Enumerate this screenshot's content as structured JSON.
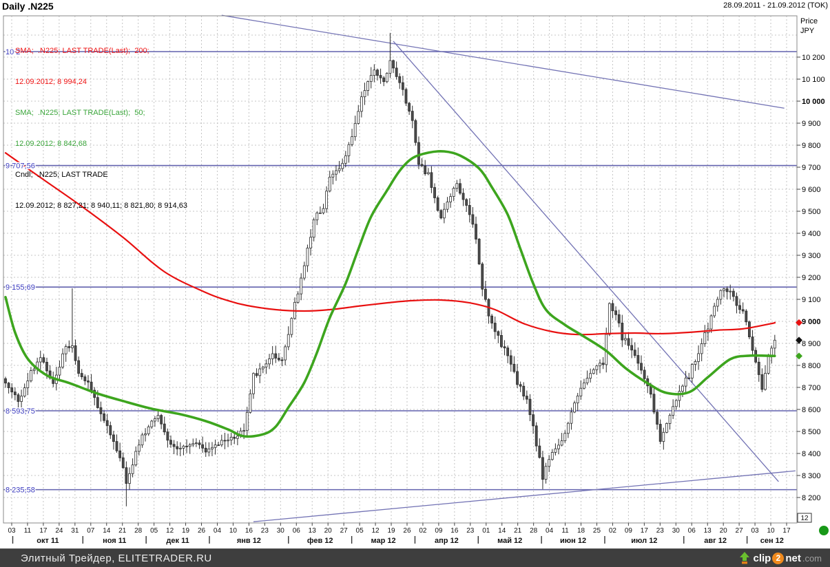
{
  "window": {
    "title": "Daily .N225",
    "date_range": "28.09.2011 - 21.09.2012 (TOK)"
  },
  "legend": {
    "sma200_line1": "SMA;  .N225; LAST TRADE(Last);  200;",
    "sma200_line2": "12.09.2012; 8 994,24",
    "sma50_line1": "SMA;  .N225; LAST TRADE(Last);  50;",
    "sma50_line2": "12.09.2012; 8 842,68",
    "cndl_line1": "Cndl;  .N225; LAST TRADE",
    "cndl_line2": "12.09.2012; 8 827,21; 8 940,11; 8 821,80; 8 914,63"
  },
  "footer": {
    "text": "Элитный Трейдер, ELITETRADER.RU",
    "logo": {
      "icon": "clip2net-arrow-icon",
      "part1": "clip",
      "part2": "2",
      "part3": "net",
      "part4": ".com"
    }
  },
  "colors": {
    "sma200": "#e81010",
    "sma50": "#3da51e",
    "level_line": "#6161ad",
    "trendline": "#7272b4",
    "level_label": "#3b3bbf",
    "grid": "#c4c4c4",
    "candle_up_fill": "#ffffff",
    "candle_down_fill": "#4d4d4d",
    "candle_stroke": "#2a2a2a",
    "axis_text": "#000000",
    "marker_close": "#111111",
    "green_dot": "#189818"
  },
  "chart_data": {
    "type": "candlestick",
    "title": "Daily .N225",
    "instrument": ".N225",
    "axis": {
      "price_label": "Price",
      "currency_label": "JPY",
      "ylim": [
        8090,
        10390
      ],
      "ytick_min": 8200,
      "ytick_max": 10300,
      "ytick_label_max": 10200,
      "ytick_step": 100,
      "yticks_bold": [
        10000,
        9000
      ],
      "day_tick_labels": [
        "03",
        "11",
        "17",
        "24",
        "31",
        "07",
        "14",
        "21",
        "28",
        "05",
        "12",
        "19",
        "26",
        "04",
        "10",
        "16",
        "23",
        "30",
        "06",
        "13",
        "20",
        "27",
        "05",
        "12",
        "19",
        "26",
        "02",
        "09",
        "16",
        "23",
        "01",
        "14",
        "21",
        "28",
        "04",
        "11",
        "18",
        "25",
        "02",
        "09",
        "17",
        "23",
        "30",
        "06",
        "13",
        "20",
        "27",
        "03",
        "10",
        "17"
      ],
      "day_tick_month": [
        0,
        0,
        0,
        0,
        0,
        1,
        1,
        1,
        1,
        2,
        2,
        2,
        2,
        3,
        3,
        3,
        3,
        3,
        4,
        4,
        4,
        4,
        5,
        5,
        5,
        5,
        6,
        6,
        6,
        6,
        7,
        7,
        7,
        7,
        8,
        8,
        8,
        8,
        9,
        9,
        9,
        9,
        9,
        10,
        10,
        10,
        10,
        11,
        11,
        11
      ],
      "months": [
        "окт 11",
        "ноя 11",
        "дек 11",
        "янв 12",
        "фев 12",
        "мар 12",
        "апр 12",
        "май 12",
        "июн 12",
        "июл 12",
        "авг 12",
        "сен 12"
      ]
    },
    "last_bar": {
      "date": "12.09.2012",
      "open": 8827.21,
      "high": 8940.11,
      "low": 8821.8,
      "close": 8914.63,
      "axis_day_label": "12"
    },
    "levels": [
      {
        "label": "10 2",
        "value": 10225
      },
      {
        "label": "9 707,56",
        "value": 9707.56
      },
      {
        "label": "9 155,69",
        "value": 9155.69
      },
      {
        "label": "8 593,75",
        "value": 8593.75
      },
      {
        "label": "8 235,58",
        "value": 8235.58
      }
    ],
    "trendlines": [
      {
        "x1_day": 68,
        "price1": 10390,
        "x2_day": 245,
        "price2": 9968
      },
      {
        "x1_day": 122,
        "price1": 10272,
        "x2_day": 243.2,
        "price2": 8272
      },
      {
        "x1_day": 78,
        "price1": 8090,
        "x2_day": 248.5,
        "price2": 8321
      }
    ],
    "axis_markers": [
      {
        "name": "sma200-last",
        "color": "#e81010",
        "value": 8994.24
      },
      {
        "name": "close-last",
        "color": "#111111",
        "value": 8914.63
      },
      {
        "name": "sma50-last",
        "color": "#3da51e",
        "value": 8842.68
      }
    ],
    "series": [
      {
        "name": "SMA 200",
        "type": "line",
        "color_key": "sma200",
        "last_value": 8994.24,
        "points": [
          [
            0,
            9765
          ],
          [
            11,
            9653
          ],
          [
            24,
            9522
          ],
          [
            37,
            9381
          ],
          [
            50,
            9225
          ],
          [
            63,
            9131
          ],
          [
            70,
            9094
          ],
          [
            76,
            9072
          ],
          [
            85,
            9053
          ],
          [
            94,
            9047
          ],
          [
            102,
            9053
          ],
          [
            111,
            9069
          ],
          [
            120,
            9084
          ],
          [
            128,
            9094
          ],
          [
            137,
            9097
          ],
          [
            146,
            9084
          ],
          [
            154,
            9053
          ],
          [
            163,
            8990
          ],
          [
            172,
            8953
          ],
          [
            180,
            8940
          ],
          [
            189,
            8944
          ],
          [
            198,
            8947
          ],
          [
            206,
            8944
          ],
          [
            215,
            8950
          ],
          [
            224,
            8960
          ],
          [
            232,
            8966
          ],
          [
            241,
            8990
          ],
          [
            242,
            8994.24
          ]
        ]
      },
      {
        "name": "SMA 50",
        "type": "line",
        "color_key": "sma50",
        "last_value": 8842.68,
        "points": [
          [
            0,
            9110
          ],
          [
            3,
            8950
          ],
          [
            7,
            8830
          ],
          [
            13,
            8755
          ],
          [
            20,
            8720
          ],
          [
            29,
            8672
          ],
          [
            37,
            8638
          ],
          [
            46,
            8603
          ],
          [
            55,
            8578
          ],
          [
            63,
            8547
          ],
          [
            70,
            8509
          ],
          [
            75,
            8478
          ],
          [
            81,
            8487
          ],
          [
            85,
            8522
          ],
          [
            89,
            8609
          ],
          [
            94,
            8722
          ],
          [
            98,
            8859
          ],
          [
            102,
            9016
          ],
          [
            107,
            9172
          ],
          [
            111,
            9328
          ],
          [
            115,
            9475
          ],
          [
            120,
            9594
          ],
          [
            124,
            9684
          ],
          [
            128,
            9741
          ],
          [
            133,
            9766
          ],
          [
            138,
            9772
          ],
          [
            143,
            9753
          ],
          [
            149,
            9694
          ],
          [
            153,
            9609
          ],
          [
            158,
            9484
          ],
          [
            162,
            9328
          ],
          [
            166,
            9172
          ],
          [
            170,
            9053
          ],
          [
            176,
            8984
          ],
          [
            182,
            8931
          ],
          [
            189,
            8866
          ],
          [
            195,
            8788
          ],
          [
            202,
            8719
          ],
          [
            208,
            8675
          ],
          [
            215,
            8678
          ],
          [
            221,
            8747
          ],
          [
            228,
            8828
          ],
          [
            234,
            8844
          ],
          [
            242,
            8842.68
          ]
        ]
      },
      {
        "name": "Cndl .N225",
        "type": "candles",
        "days": 243,
        "close_anchors": [
          [
            0,
            8725
          ],
          [
            4,
            8630
          ],
          [
            8,
            8770
          ],
          [
            11,
            8835
          ],
          [
            15,
            8725
          ],
          [
            19,
            8880
          ],
          [
            21,
            8895
          ],
          [
            23,
            8770
          ],
          [
            26,
            8725
          ],
          [
            30,
            8585
          ],
          [
            33,
            8490
          ],
          [
            36,
            8380
          ],
          [
            38,
            8270
          ],
          [
            42,
            8445
          ],
          [
            45,
            8525
          ],
          [
            48,
            8585
          ],
          [
            50,
            8490
          ],
          [
            54,
            8415
          ],
          [
            57,
            8430
          ],
          [
            60,
            8460
          ],
          [
            63,
            8415
          ],
          [
            65,
            8430
          ],
          [
            69,
            8460
          ],
          [
            72,
            8475
          ],
          [
            75,
            8505
          ],
          [
            78,
            8755
          ],
          [
            82,
            8800
          ],
          [
            84,
            8845
          ],
          [
            87,
            8815
          ],
          [
            90,
            9020
          ],
          [
            94,
            9255
          ],
          [
            97,
            9460
          ],
          [
            100,
            9520
          ],
          [
            102,
            9660
          ],
          [
            106,
            9710
          ],
          [
            108,
            9790
          ],
          [
            111,
            9960
          ],
          [
            113,
            10055
          ],
          [
            116,
            10135
          ],
          [
            119,
            10090
          ],
          [
            121,
            10185
          ],
          [
            123,
            10115
          ],
          [
            125,
            10040
          ],
          [
            128,
            9915
          ],
          [
            130,
            9710
          ],
          [
            133,
            9665
          ],
          [
            135,
            9555
          ],
          [
            137,
            9460
          ],
          [
            140,
            9570
          ],
          [
            142,
            9615
          ],
          [
            146,
            9490
          ],
          [
            148,
            9380
          ],
          [
            150,
            9145
          ],
          [
            152,
            9035
          ],
          [
            154,
            8960
          ],
          [
            158,
            8835
          ],
          [
            161,
            8725
          ],
          [
            164,
            8645
          ],
          [
            166,
            8520
          ],
          [
            169,
            8295
          ],
          [
            172,
            8395
          ],
          [
            175,
            8460
          ],
          [
            178,
            8585
          ],
          [
            181,
            8695
          ],
          [
            185,
            8770
          ],
          [
            188,
            8815
          ],
          [
            190,
            9080
          ],
          [
            192,
            9035
          ],
          [
            194,
            8925
          ],
          [
            197,
            8880
          ],
          [
            200,
            8770
          ],
          [
            203,
            8680
          ],
          [
            205,
            8520
          ],
          [
            206,
            8460
          ],
          [
            210,
            8615
          ],
          [
            212,
            8680
          ],
          [
            215,
            8755
          ],
          [
            218,
            8865
          ],
          [
            221,
            8975
          ],
          [
            225,
            9145
          ],
          [
            228,
            9130
          ],
          [
            230,
            9080
          ],
          [
            232,
            9050
          ],
          [
            234,
            8925
          ],
          [
            237,
            8770
          ],
          [
            238,
            8695
          ],
          [
            240,
            8835
          ],
          [
            241,
            8880
          ],
          [
            242,
            8914.63
          ]
        ],
        "wick_overrides": [
          {
            "day": 21,
            "high": 9150
          },
          {
            "day": 121,
            "high": 10310
          },
          {
            "day": 38,
            "low": 8160
          },
          {
            "day": 169,
            "low": 8238
          }
        ]
      }
    ]
  }
}
